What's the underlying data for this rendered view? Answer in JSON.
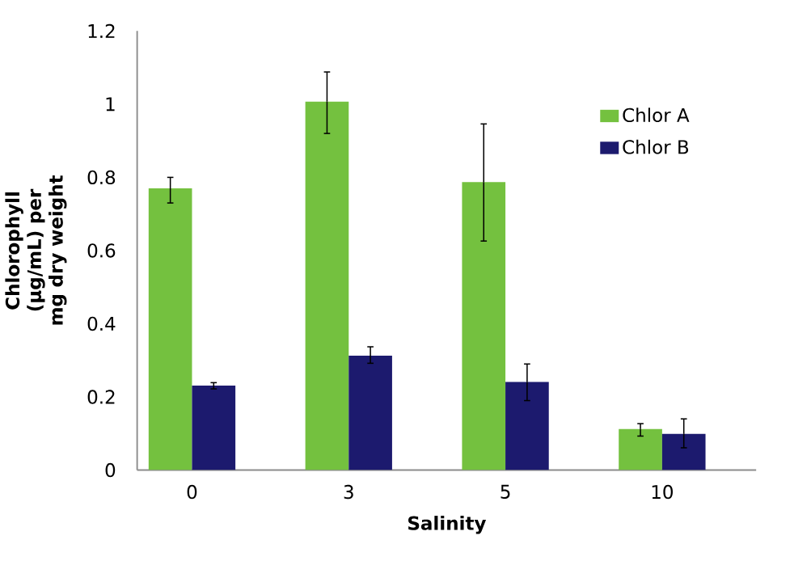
{
  "chart_data": {
    "type": "bar",
    "xlabel": "Salinity",
    "ylabel": "Chlorophyll (µg/mL) per mg dry weight",
    "categories": [
      "0",
      "3",
      "5",
      "10"
    ],
    "series": [
      {
        "name": "Chlor A",
        "color": "#74c13f",
        "values": [
          0.77,
          1.007,
          0.787,
          0.112
        ],
        "errors": [
          [
            0.73,
            0.8
          ],
          [
            0.92,
            1.088
          ],
          [
            0.626,
            0.946
          ],
          [
            0.093,
            0.127
          ]
        ]
      },
      {
        "name": "Chlor B",
        "color": "#1c1a6e",
        "values": [
          0.231,
          0.313,
          0.241,
          0.099
        ],
        "errors": [
          [
            0.222,
            0.239
          ],
          [
            0.292,
            0.337
          ],
          [
            0.19,
            0.29
          ],
          [
            0.061,
            0.14
          ]
        ]
      }
    ],
    "ylim": [
      0,
      1.2
    ],
    "yticks": [
      0,
      0.2,
      0.4,
      0.6,
      0.8,
      1,
      1.2
    ],
    "legend": "top right"
  }
}
